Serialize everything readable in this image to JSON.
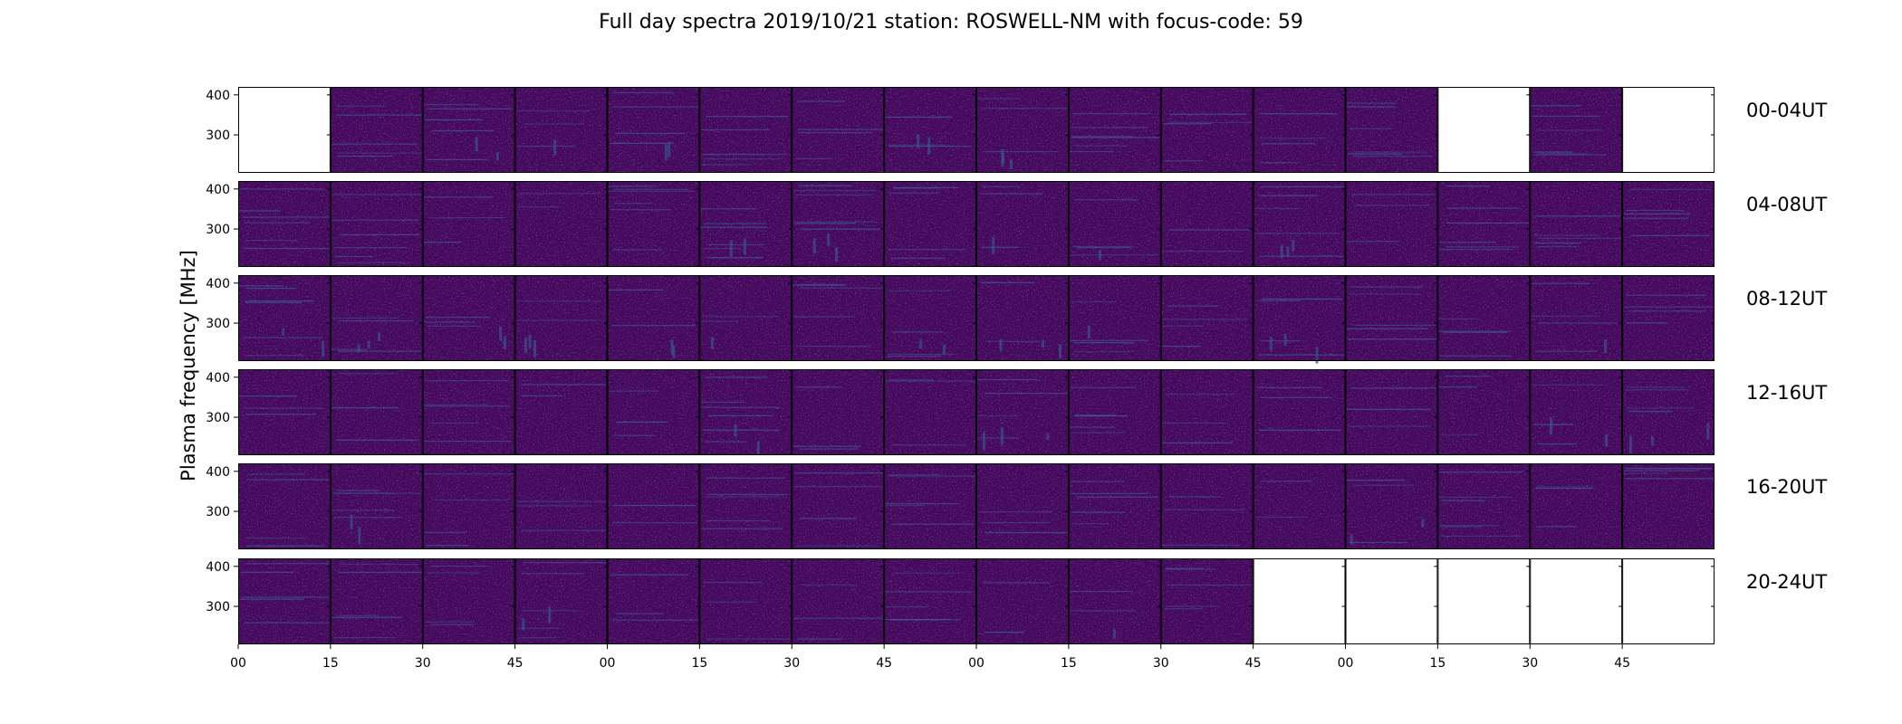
{
  "chart_data": {
    "type": "heatmap",
    "title": "Full day spectra 2019/10/21 station: ROSWELL-NM with focus-code: 59",
    "ylabel": "Plasma frequency [MHz]",
    "ylim": [
      205,
      420
    ],
    "yticks": [
      300,
      400
    ],
    "row_labels": [
      "00-04UT",
      "04-08UT",
      "08-12UT",
      "12-16UT",
      "16-20UT",
      "20-24UT"
    ],
    "x_tick_labels": [
      "00",
      "15",
      "30",
      "45",
      "00",
      "15",
      "30",
      "45",
      "00",
      "15",
      "30",
      "45",
      "00",
      "15",
      "30",
      "45"
    ],
    "panels_per_row": 16,
    "data_available": [
      [
        0,
        1,
        1,
        1,
        1,
        1,
        1,
        1,
        1,
        1,
        1,
        1,
        1,
        0,
        1,
        0
      ],
      [
        1,
        1,
        1,
        1,
        1,
        1,
        1,
        1,
        1,
        1,
        1,
        1,
        1,
        1,
        1,
        1
      ],
      [
        1,
        1,
        1,
        1,
        1,
        1,
        1,
        1,
        1,
        1,
        1,
        1,
        1,
        1,
        1,
        1
      ],
      [
        1,
        1,
        1,
        1,
        1,
        1,
        1,
        1,
        1,
        1,
        1,
        1,
        1,
        1,
        1,
        1
      ],
      [
        1,
        1,
        1,
        1,
        1,
        1,
        1,
        1,
        1,
        1,
        1,
        1,
        1,
        1,
        1,
        1
      ],
      [
        1,
        1,
        1,
        1,
        1,
        1,
        1,
        1,
        1,
        1,
        1,
        0,
        0,
        0,
        0,
        0
      ]
    ],
    "colors": {
      "background": "#46085c",
      "noise": "#3b528b",
      "bright": "#3e6b9e",
      "frame": "#000000"
    }
  }
}
